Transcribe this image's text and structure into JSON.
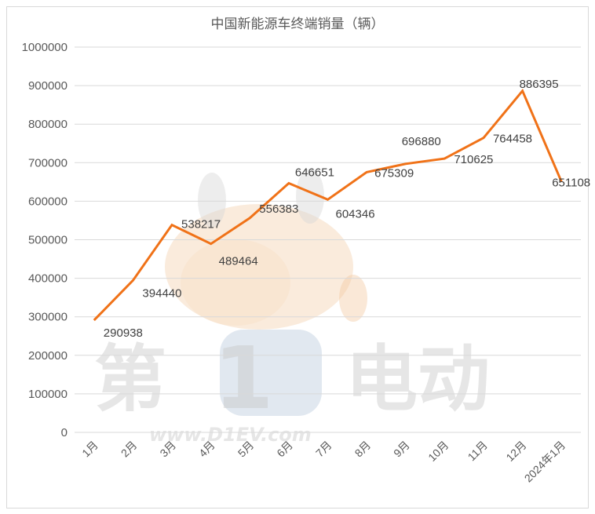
{
  "chart_data": {
    "type": "line",
    "title": "中国新能源车终端销量（辆）",
    "categories": [
      "1月",
      "2月",
      "3月",
      "4月",
      "5月",
      "6月",
      "7月",
      "8月",
      "9月",
      "10月",
      "11月",
      "12月",
      "2024年1月"
    ],
    "series": [
      {
        "values": [
          290938,
          394440,
          538217,
          489464,
          556383,
          646651,
          604346,
          675309,
          696880,
          710625,
          764458,
          886395,
          651108
        ]
      }
    ],
    "ylim": [
      0,
      1000000
    ],
    "yticks": [
      0,
      100000,
      200000,
      300000,
      400000,
      500000,
      600000,
      700000,
      800000,
      900000,
      1000000
    ],
    "xlabel": "",
    "ylabel": "",
    "grid": true,
    "legend": "none",
    "line_color": "#f07218",
    "grid_color": "#d9d9d9"
  },
  "watermark": {
    "left_text": "第",
    "digit": "1",
    "right_text": "电动",
    "url": "www.D1EV.com"
  }
}
